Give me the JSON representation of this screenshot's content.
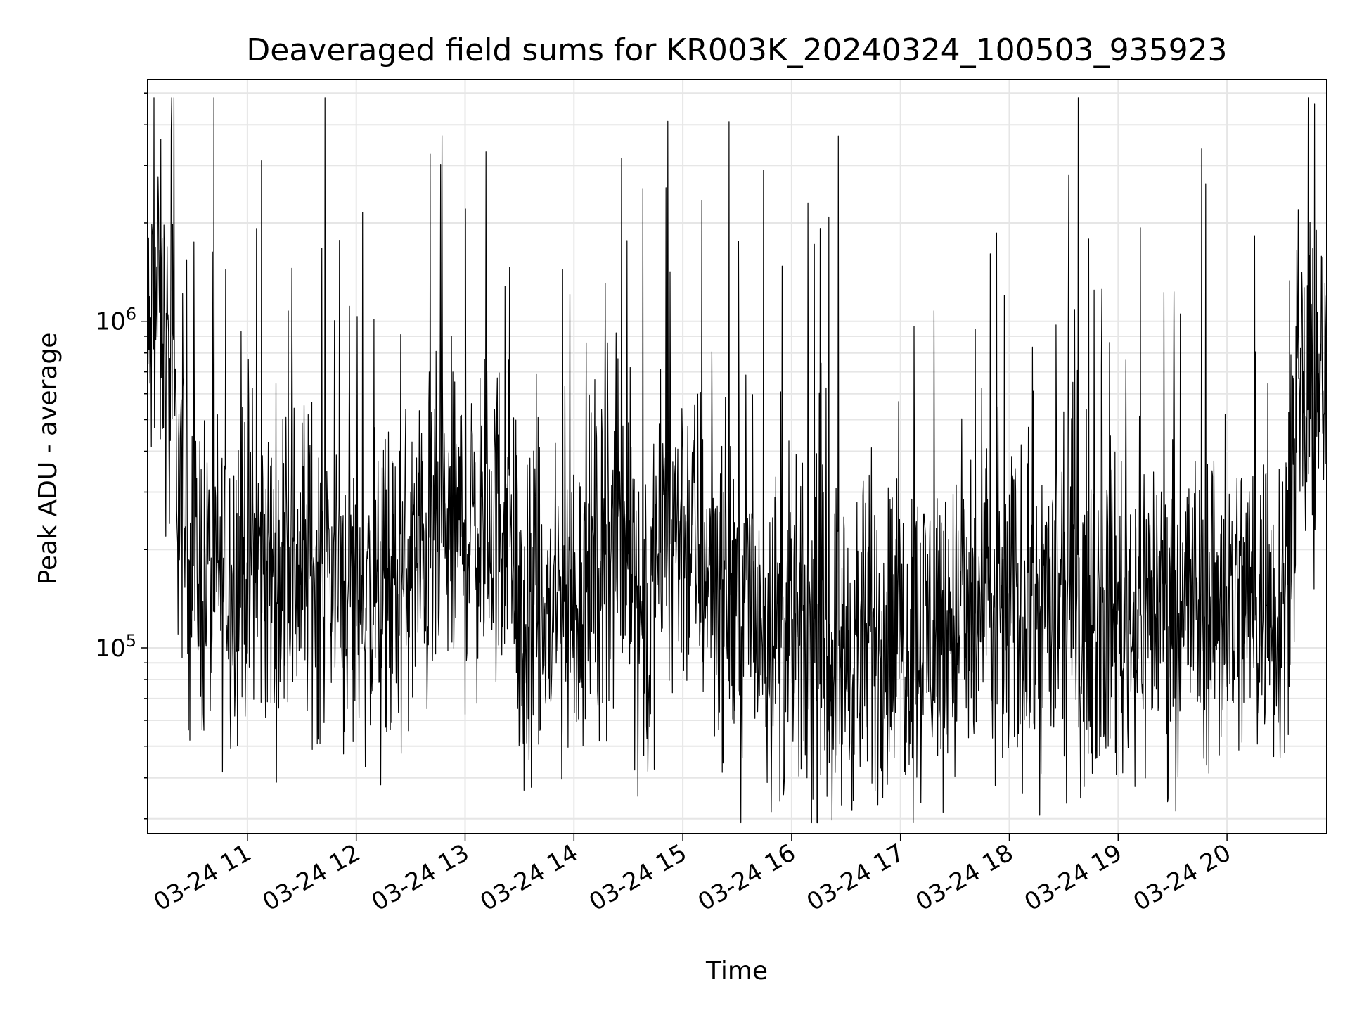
{
  "chart_data": {
    "type": "line",
    "title": "Deaveraged field sums for KR003K_20240324_100503_935923",
    "xlabel": "Time",
    "ylabel": "Peak ADU - average",
    "yscale": "log",
    "ylim": [
      27000,
      5500000
    ],
    "xlim": [
      "2024-03-24 10:05",
      "2024-03-24 20:55"
    ],
    "grid": true,
    "line_color": "#000000",
    "grid_color": "#e6e6e6",
    "x_ticks": [
      {
        "value": "2024-03-24 11:00",
        "label": "03-24 11"
      },
      {
        "value": "2024-03-24 12:00",
        "label": "03-24 12"
      },
      {
        "value": "2024-03-24 13:00",
        "label": "03-24 13"
      },
      {
        "value": "2024-03-24 14:00",
        "label": "03-24 14"
      },
      {
        "value": "2024-03-24 15:00",
        "label": "03-24 15"
      },
      {
        "value": "2024-03-24 16:00",
        "label": "03-24 16"
      },
      {
        "value": "2024-03-24 17:00",
        "label": "03-24 17"
      },
      {
        "value": "2024-03-24 18:00",
        "label": "03-24 18"
      },
      {
        "value": "2024-03-24 19:00",
        "label": "03-24 19"
      },
      {
        "value": "2024-03-24 20:00",
        "label": "03-24 20"
      }
    ],
    "y_ticks": [
      {
        "value": 100000,
        "base": "10",
        "exp": "5"
      },
      {
        "value": 1000000,
        "base": "10",
        "exp": "6"
      }
    ],
    "series": [
      {
        "points": [
          [
            "2024-03-24 10:05",
            700000
          ],
          [
            "2024-03-24 10:10",
            1200000
          ],
          [
            "2024-03-24 10:15",
            800000
          ],
          [
            "2024-03-24 10:20",
            450000
          ],
          [
            "2024-03-24 10:25",
            230000
          ],
          [
            "2024-03-24 10:30",
            180000
          ],
          [
            "2024-03-24 10:40",
            160000
          ],
          [
            "2024-03-24 10:50",
            170000
          ],
          [
            "2024-03-24 11:00",
            190000
          ],
          [
            "2024-03-24 11:15",
            170000
          ],
          [
            "2024-03-24 11:30",
            185000
          ],
          [
            "2024-03-24 11:45",
            175000
          ],
          [
            "2024-03-24 12:00",
            150000
          ],
          [
            "2024-03-24 12:15",
            130000
          ],
          [
            "2024-03-24 12:30",
            170000
          ],
          [
            "2024-03-24 12:45",
            220000
          ],
          [
            "2024-03-24 13:00",
            230000
          ],
          [
            "2024-03-24 13:15",
            240000
          ],
          [
            "2024-03-24 13:25",
            250000
          ],
          [
            "2024-03-24 13:30",
            100000
          ],
          [
            "2024-03-24 13:45",
            120000
          ],
          [
            "2024-03-24 14:00",
            140000
          ],
          [
            "2024-03-24 14:15",
            190000
          ],
          [
            "2024-03-24 14:30",
            250000
          ],
          [
            "2024-03-24 14:40",
            95000
          ],
          [
            "2024-03-24 14:50",
            260000
          ],
          [
            "2024-03-24 15:00",
            230000
          ],
          [
            "2024-03-24 15:15",
            180000
          ],
          [
            "2024-03-24 15:30",
            130000
          ],
          [
            "2024-03-24 15:45",
            125000
          ],
          [
            "2024-03-24 16:00",
            105000
          ],
          [
            "2024-03-24 16:15",
            100000
          ],
          [
            "2024-03-24 16:30",
            95000
          ],
          [
            "2024-03-24 16:45",
            100000
          ],
          [
            "2024-03-24 17:00",
            110000
          ],
          [
            "2024-03-24 17:30",
            120000
          ],
          [
            "2024-03-24 18:00",
            125000
          ],
          [
            "2024-03-24 18:30",
            130000
          ],
          [
            "2024-03-24 19:00",
            130000
          ],
          [
            "2024-03-24 19:30",
            140000
          ],
          [
            "2024-03-24 20:00",
            140000
          ],
          [
            "2024-03-24 20:30",
            140000
          ],
          [
            "2024-03-24 20:40",
            500000
          ],
          [
            "2024-03-24 20:55",
            650000
          ]
        ]
      }
    ]
  }
}
